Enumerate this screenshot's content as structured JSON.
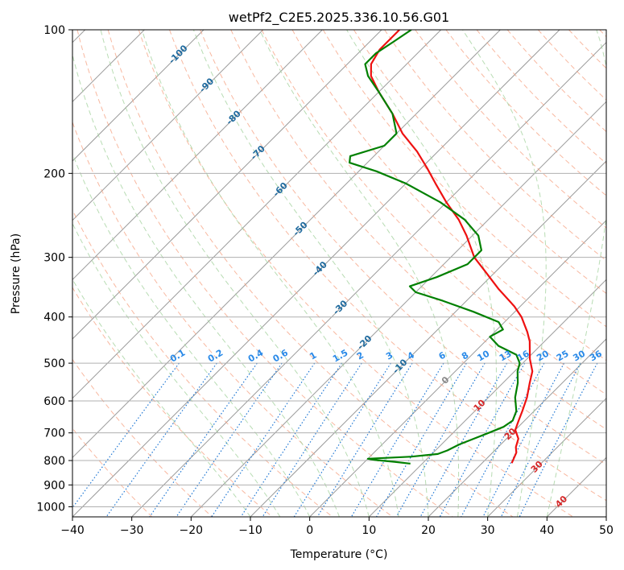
{
  "chart_data": {
    "type": "line",
    "subtype": "skew-T log-P diagram",
    "title": "wetPf2_C2E5.2025.336.10.56.G01",
    "xlabel": "Temperature (°C)",
    "ylabel": "Pressure (hPa)",
    "xlim": [
      -40,
      50
    ],
    "ylim_hpa": [
      1050,
      100
    ],
    "x_ticks": [
      -40,
      -30,
      -20,
      -10,
      0,
      10,
      20,
      30,
      40,
      50
    ],
    "x_tick_labels": [
      "−40",
      "−30",
      "−20",
      "−10",
      "0",
      "10",
      "20",
      "30",
      "40",
      "50"
    ],
    "y_ticks": [
      100,
      200,
      300,
      400,
      500,
      600,
      700,
      800,
      900,
      1000
    ],
    "y_tick_labels": [
      "100",
      "200",
      "300",
      "400",
      "500",
      "600",
      "700",
      "800",
      "900",
      "1000"
    ],
    "grid": true,
    "dry_adiabat_labels": [
      "-100",
      "-90",
      "-80",
      "-70",
      "-60",
      "-50",
      "-40",
      "-30",
      "-20",
      "-10",
      "0",
      "10",
      "20",
      "30",
      "40"
    ],
    "dry_adiabat_label_values_c": [
      -100,
      -90,
      -80,
      -70,
      -60,
      -50,
      -40,
      -30,
      -20,
      -10,
      0,
      10,
      20,
      30,
      40
    ],
    "mixing_ratio_labels": [
      "0.1",
      "0.2",
      "0.4",
      "0.6",
      "1",
      "1.5",
      "2",
      "3",
      "4",
      "6",
      "8",
      "10",
      "13",
      "16",
      "20",
      "25",
      "30",
      "36"
    ],
    "mixing_ratio_values_gkg": [
      0.1,
      0.2,
      0.4,
      0.6,
      1,
      1.5,
      2,
      3,
      4,
      6,
      8,
      10,
      13,
      16,
      20,
      25,
      30,
      36
    ],
    "series": [
      {
        "name": "Temperature",
        "color": "#ee1111",
        "points": [
          {
            "p": 810,
            "t": 25
          },
          {
            "p": 790,
            "t": 24.5
          },
          {
            "p": 770,
            "t": 24
          },
          {
            "p": 750,
            "t": 23
          },
          {
            "p": 720,
            "t": 22
          },
          {
            "p": 690,
            "t": 20
          },
          {
            "p": 660,
            "t": 19
          },
          {
            "p": 630,
            "t": 18
          },
          {
            "p": 590,
            "t": 16.5
          },
          {
            "p": 550,
            "t": 14.5
          },
          {
            "p": 520,
            "t": 13
          },
          {
            "p": 490,
            "t": 10.5
          },
          {
            "p": 450,
            "t": 7.5
          },
          {
            "p": 430,
            "t": 5.5
          },
          {
            "p": 400,
            "t": 2
          },
          {
            "p": 380,
            "t": -1
          },
          {
            "p": 350,
            "t": -6.5
          },
          {
            "p": 320,
            "t": -12
          },
          {
            "p": 300,
            "t": -16
          },
          {
            "p": 270,
            "t": -21
          },
          {
            "p": 250,
            "t": -25
          },
          {
            "p": 230,
            "t": -30
          },
          {
            "p": 210,
            "t": -35
          },
          {
            "p": 195,
            "t": -39
          },
          {
            "p": 180,
            "t": -43.5
          },
          {
            "p": 165,
            "t": -49
          },
          {
            "p": 150,
            "t": -54
          },
          {
            "p": 135,
            "t": -60
          },
          {
            "p": 125,
            "t": -64
          },
          {
            "p": 118,
            "t": -66
          },
          {
            "p": 110,
            "t": -67
          },
          {
            "p": 104,
            "t": -67
          },
          {
            "p": 100,
            "t": -67
          }
        ]
      },
      {
        "name": "Dewpoint",
        "color": "#008000",
        "points": [
          {
            "p": 812,
            "t": 8
          },
          {
            "p": 805,
            "t": 5
          },
          {
            "p": 798,
            "t": 1.5
          },
          {
            "p": 793,
            "t": 0
          },
          {
            "p": 785,
            "t": 7
          },
          {
            "p": 775,
            "t": 11
          },
          {
            "p": 762,
            "t": 12
          },
          {
            "p": 740,
            "t": 13
          },
          {
            "p": 720,
            "t": 14.5
          },
          {
            "p": 700,
            "t": 16
          },
          {
            "p": 680,
            "t": 17.5
          },
          {
            "p": 660,
            "t": 18
          },
          {
            "p": 630,
            "t": 17
          },
          {
            "p": 590,
            "t": 14.5
          },
          {
            "p": 550,
            "t": 12.5
          },
          {
            "p": 520,
            "t": 10.5
          },
          {
            "p": 500,
            "t": 9.5
          },
          {
            "p": 480,
            "t": 7.5
          },
          {
            "p": 460,
            "t": 3
          },
          {
            "p": 440,
            "t": 0
          },
          {
            "p": 425,
            "t": 1
          },
          {
            "p": 410,
            "t": -1
          },
          {
            "p": 390,
            "t": -7
          },
          {
            "p": 370,
            "t": -14
          },
          {
            "p": 355,
            "t": -20
          },
          {
            "p": 345,
            "t": -22
          },
          {
            "p": 330,
            "t": -19
          },
          {
            "p": 310,
            "t": -16
          },
          {
            "p": 290,
            "t": -16
          },
          {
            "p": 270,
            "t": -19
          },
          {
            "p": 250,
            "t": -24
          },
          {
            "p": 230,
            "t": -31
          },
          {
            "p": 210,
            "t": -40
          },
          {
            "p": 198,
            "t": -47
          },
          {
            "p": 190,
            "t": -53
          },
          {
            "p": 184,
            "t": -54
          },
          {
            "p": 175,
            "t": -50
          },
          {
            "p": 165,
            "t": -50
          },
          {
            "p": 150,
            "t": -54
          },
          {
            "p": 135,
            "t": -60
          },
          {
            "p": 125,
            "t": -64.5
          },
          {
            "p": 118,
            "t": -67
          },
          {
            "p": 112,
            "t": -67
          },
          {
            "p": 106,
            "t": -66
          },
          {
            "p": 100,
            "t": -65
          }
        ]
      }
    ]
  },
  "colors": {
    "temperature": "#ee1111",
    "dewpoint": "#008000",
    "dry_adiabat": "#f5a080",
    "moist_adiabat": "#a6d3a0",
    "mixing_ratio": "#1f77d4",
    "isotherm": "#9a9a9a",
    "dry_label": "#1f6a9e",
    "mixing_label": "#2a8ae8",
    "moist_label": "#d62728"
  }
}
